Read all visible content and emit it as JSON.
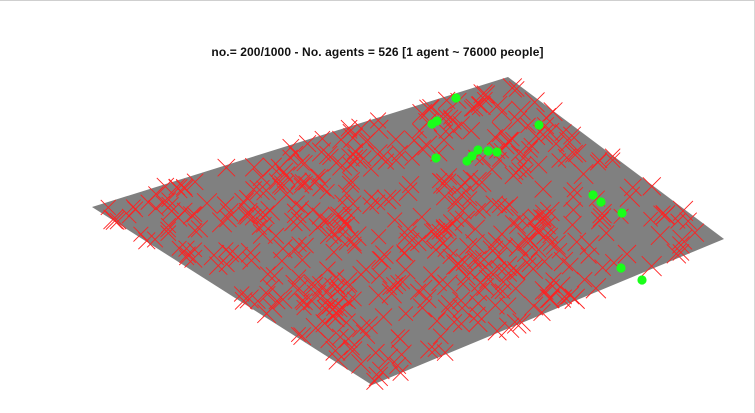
{
  "window": {
    "title": "no.= 200/1000 -  No. agents = 526 [1 agent ~ 76000 people]"
  },
  "simulation": {
    "step": 200,
    "total_steps": 1000,
    "agents": 526,
    "people_per_agent": 76000,
    "plane_color": "#808080",
    "marker_color_cross": "#ff2020",
    "marker_color_dot": "#19ff19",
    "green_markers": 15
  }
}
